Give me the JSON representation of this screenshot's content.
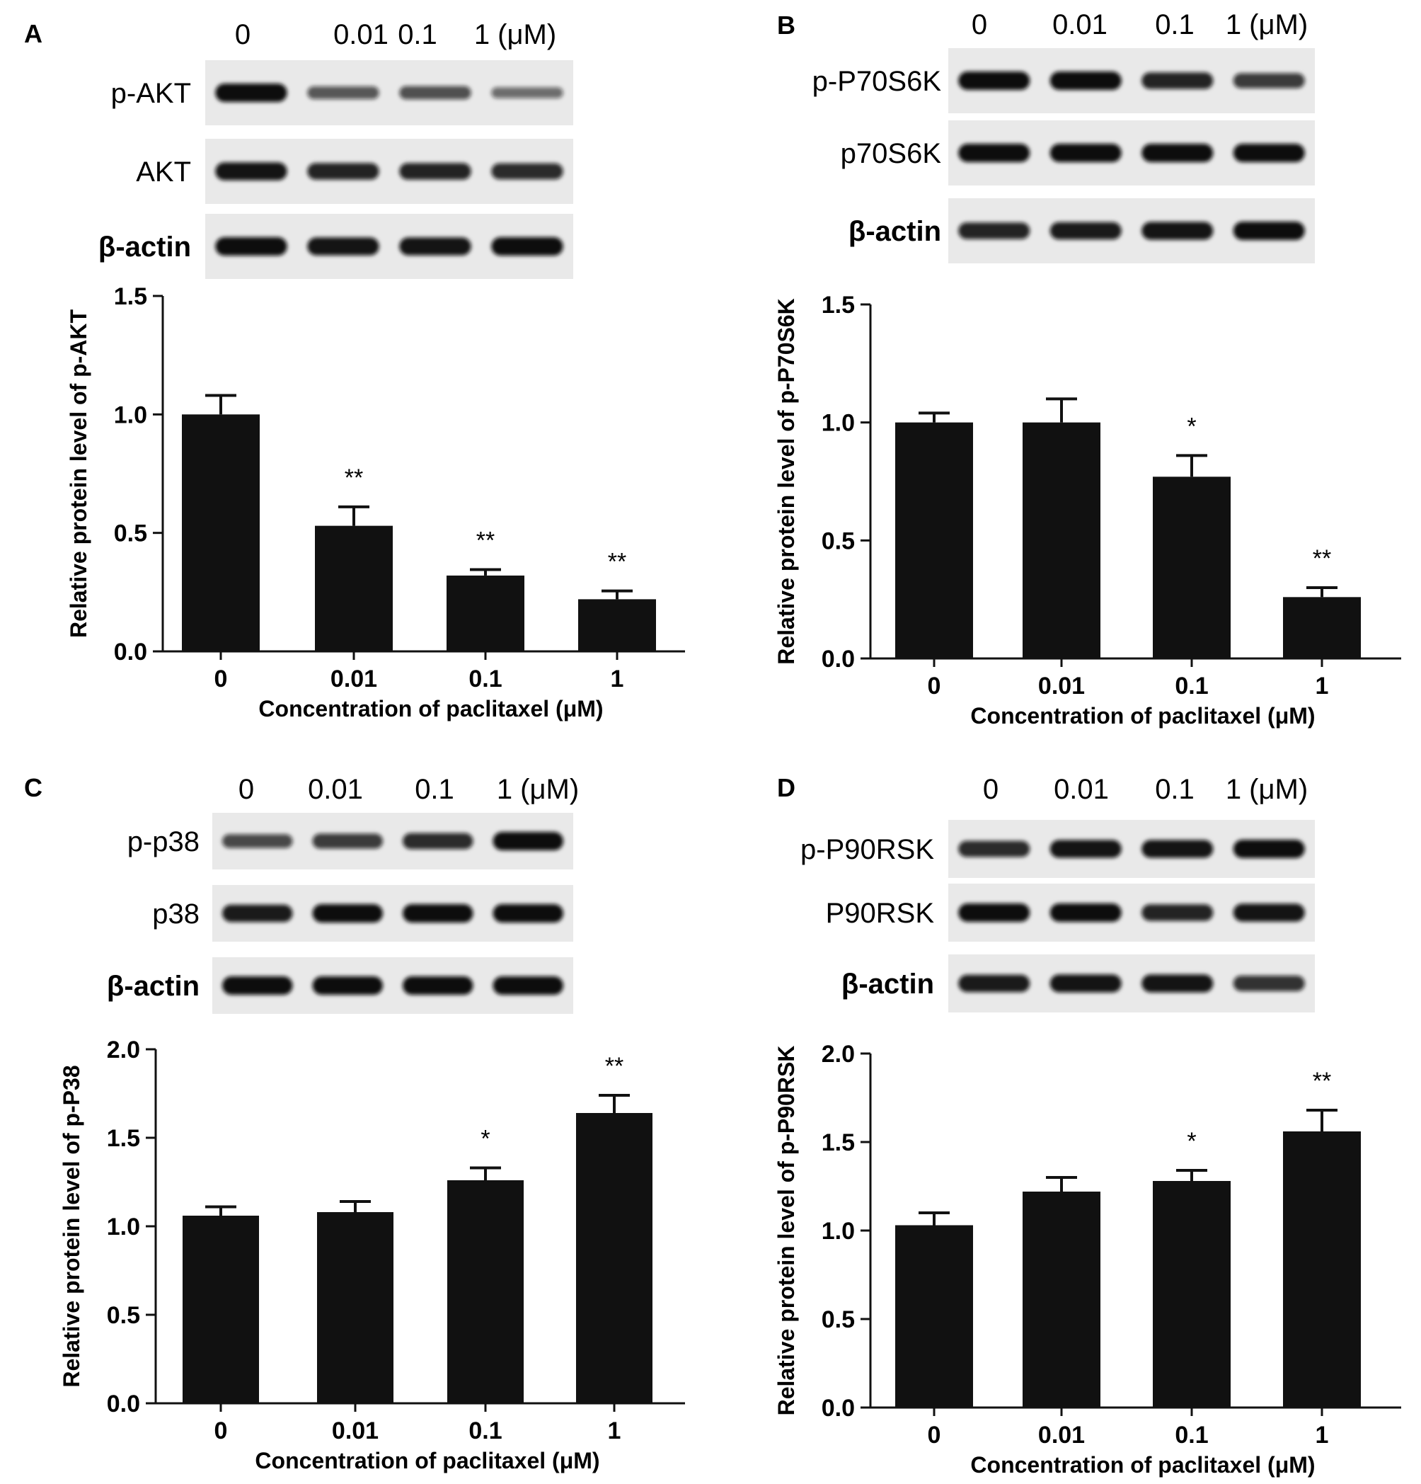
{
  "chart_data": [
    {
      "panel": "A",
      "type": "bar",
      "lanes": [
        "0",
        "0.01",
        "0.1",
        "1 (μM)"
      ],
      "blots": [
        "p-AKT",
        "AKT",
        "β-actin"
      ],
      "blot_intensity": [
        [
          1.0,
          0.5,
          0.55,
          0.35
        ],
        [
          0.95,
          0.85,
          0.85,
          0.8
        ],
        [
          1.0,
          0.95,
          0.95,
          1.0
        ]
      ],
      "categories": [
        "0",
        "0.01",
        "0.1",
        "1"
      ],
      "values": [
        1.0,
        0.53,
        0.32,
        0.22
      ],
      "errors": [
        0.08,
        0.08,
        0.025,
        0.035
      ],
      "significance": [
        "",
        "**",
        "**",
        "**"
      ],
      "xlabel": "Concentration of paclitaxel (μM)",
      "ylabel": "Relative protein level of p-AKT",
      "ylim": [
        0,
        1.5
      ],
      "yticks": [
        "0.0",
        "0.5",
        "1.0",
        "1.5"
      ],
      "color": "#111111"
    },
    {
      "panel": "B",
      "type": "bar",
      "lanes": [
        "0",
        "0.01",
        "0.1",
        "1 (μM)"
      ],
      "blots": [
        "p-P70S6K",
        "p70S6K",
        "β-actin"
      ],
      "blot_intensity": [
        [
          1.0,
          1.0,
          0.85,
          0.7
        ],
        [
          1.0,
          1.0,
          1.0,
          1.0
        ],
        [
          0.85,
          0.9,
          0.95,
          1.0
        ]
      ],
      "categories": [
        "0",
        "0.01",
        "0.1",
        "1"
      ],
      "values": [
        1.0,
        1.0,
        0.77,
        0.26
      ],
      "errors": [
        0.04,
        0.1,
        0.09,
        0.04
      ],
      "significance": [
        "",
        "",
        "*",
        "**"
      ],
      "xlabel": "Concentration of paclitaxel (μM)",
      "ylabel": "Relative protein level of p-P70S6K",
      "ylim": [
        0,
        1.5
      ],
      "yticks": [
        "0.0",
        "0.5",
        "1.0",
        "1.5"
      ],
      "color": "#111111"
    },
    {
      "panel": "C",
      "type": "bar",
      "lanes": [
        "0",
        "0.01",
        "0.1",
        "1 (μM)"
      ],
      "blots": [
        "p-p38",
        "p38",
        "β-actin"
      ],
      "blot_intensity": [
        [
          0.6,
          0.7,
          0.8,
          1.0
        ],
        [
          0.9,
          1.0,
          1.0,
          1.0
        ],
        [
          1.0,
          1.0,
          1.0,
          1.0
        ]
      ],
      "categories": [
        "0",
        "0.01",
        "0.1",
        "1"
      ],
      "values": [
        1.06,
        1.08,
        1.26,
        1.64
      ],
      "errors": [
        0.05,
        0.06,
        0.07,
        0.1
      ],
      "significance": [
        "",
        "",
        "*",
        "**"
      ],
      "xlabel": "Concentration of paclitaxel (μM)",
      "ylabel": "Relative protein level of p-P38",
      "ylim": [
        0,
        2.0
      ],
      "yticks": [
        "0.0",
        "0.5",
        "1.0",
        "1.5",
        "2.0"
      ],
      "color": "#111111"
    },
    {
      "panel": "D",
      "type": "bar",
      "lanes": [
        "0",
        "0.01",
        "0.1",
        "1 (μM)"
      ],
      "blots": [
        "p-P90RSK",
        "P90RSK",
        "β-actin"
      ],
      "blot_intensity": [
        [
          0.8,
          0.95,
          0.95,
          1.0
        ],
        [
          1.0,
          1.0,
          0.85,
          0.95
        ],
        [
          0.9,
          0.95,
          0.95,
          0.75
        ]
      ],
      "categories": [
        "0",
        "0.01",
        "0.1",
        "1"
      ],
      "values": [
        1.03,
        1.22,
        1.28,
        1.56
      ],
      "errors": [
        0.07,
        0.08,
        0.06,
        0.12
      ],
      "significance": [
        "",
        "",
        "*",
        "**"
      ],
      "xlabel": "Concentration of paclitaxel (μM)",
      "ylabel": "Relative protein level of p-P90RSK",
      "ylim": [
        0,
        2.0
      ],
      "yticks": [
        "0.0",
        "0.5",
        "1.0",
        "1.5",
        "2.0"
      ],
      "color": "#111111"
    }
  ]
}
